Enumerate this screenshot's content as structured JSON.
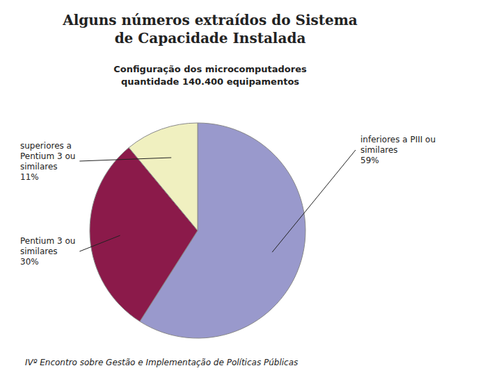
{
  "chart_data": {
    "type": "pie",
    "title": "Alguns números extraídos do Sistema\nde Capacidade Instalada",
    "subtitle": "Configuração dos microcomputadores\nquantidade 140.400 equipamentos",
    "categories": [
      "inferiores a PIII ou\nsimilares",
      "Pentium 3 ou\nsimilares",
      "superiores a\nPentium 3 ou\nsimilares"
    ],
    "values": [
      59,
      30,
      11
    ],
    "value_labels": [
      "59%",
      "30%",
      "11%"
    ],
    "data_labels": true,
    "colors": [
      "#9999cc",
      "#8b1a4a",
      "#f0f0c0"
    ],
    "annotations": [
      "IVº Encontro sobre Gestão e Implementação de Políticas Públicas"
    ]
  }
}
